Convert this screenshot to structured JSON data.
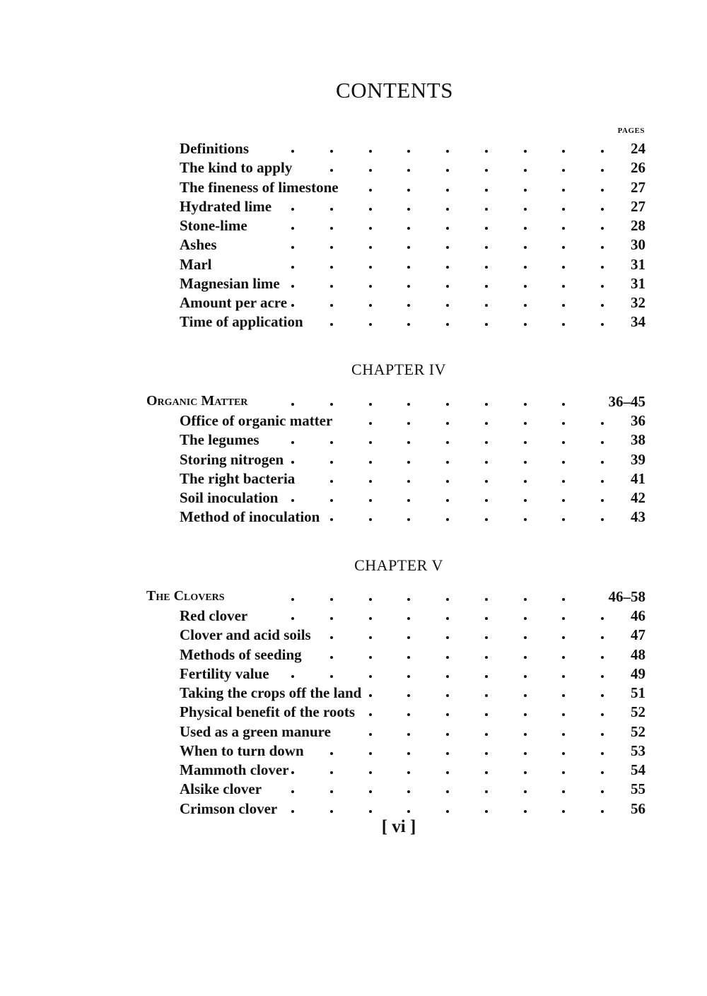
{
  "title": "CONTENTS",
  "pages_label": "PAGES",
  "sections": [
    {
      "chapter": "",
      "head": null,
      "entries": [
        {
          "label": "Definitions",
          "page": "24"
        },
        {
          "label": "The kind to apply",
          "page": "26"
        },
        {
          "label": "The fineness of limestone",
          "page": "27"
        },
        {
          "label": "Hydrated lime",
          "page": "27"
        },
        {
          "label": "Stone-lime",
          "page": "28"
        },
        {
          "label": "Ashes",
          "page": "30"
        },
        {
          "label": "Marl",
          "page": "31"
        },
        {
          "label": "Magnesian lime",
          "page": "31"
        },
        {
          "label": "Amount per acre",
          "page": "32"
        },
        {
          "label": "Time of application",
          "page": "34"
        }
      ]
    },
    {
      "chapter": "CHAPTER IV",
      "head": {
        "label": "Organic Matter",
        "page": "36–45"
      },
      "entries": [
        {
          "label": "Office of organic matter",
          "page": "36"
        },
        {
          "label": "The legumes",
          "page": "38"
        },
        {
          "label": "Storing nitrogen",
          "page": "39"
        },
        {
          "label": "The right bacteria",
          "page": "41"
        },
        {
          "label": "Soil inoculation",
          "page": "42"
        },
        {
          "label": "Method of inoculation",
          "page": "43"
        }
      ]
    },
    {
      "chapter": "CHAPTER V",
      "head": {
        "label": "The Clovers",
        "page": "46–58"
      },
      "entries": [
        {
          "label": "Red clover",
          "page": "46"
        },
        {
          "label": "Clover and acid soils",
          "page": "47"
        },
        {
          "label": "Methods of seeding",
          "page": "48"
        },
        {
          "label": "Fertility value",
          "page": "49"
        },
        {
          "label": "Taking the crops off the land",
          "page": "51"
        },
        {
          "label": "Physical benefit of the roots",
          "page": "52"
        },
        {
          "label": "Used as a green manure",
          "page": "52"
        },
        {
          "label": "When to turn down",
          "page": "53"
        },
        {
          "label": "Mammoth clover",
          "page": "54"
        },
        {
          "label": "Alsike clover",
          "page": "55"
        },
        {
          "label": "Crimson clover",
          "page": "56"
        }
      ]
    }
  ],
  "folio": "[ vi ]"
}
